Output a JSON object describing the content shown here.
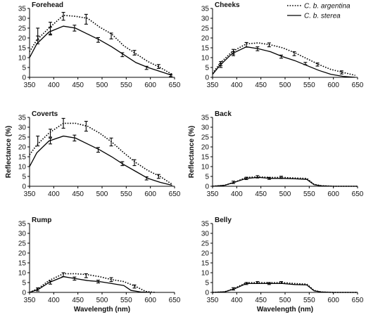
{
  "legend": {
    "argentina_label": "C. b. argentina",
    "sterea_label": "C. b. sterea"
  },
  "chart_data": [
    {
      "type": "line",
      "title": "Forehead",
      "xlabel": "",
      "ylabel": "",
      "xlim": [
        350,
        650
      ],
      "ylim": [
        0,
        35
      ],
      "xticks": [
        350,
        400,
        450,
        500,
        550,
        600,
        650
      ],
      "yticks": [
        0,
        5,
        10,
        15,
        20,
        25,
        30,
        35
      ],
      "series": [
        {
          "name": "C. b. argentina",
          "style": "dotted",
          "x": [
            350,
            365,
            390,
            420,
            445,
            470,
            495,
            520,
            545,
            570,
            595,
            620,
            645
          ],
          "y": [
            13,
            19,
            25,
            31.5,
            31,
            30,
            25.5,
            22,
            16,
            12,
            8,
            5,
            1.5
          ],
          "errors": [
            {
              "x": 367,
              "y": 22,
              "err": 3
            },
            {
              "x": 393,
              "y": 25,
              "err": 3
            },
            {
              "x": 420,
              "y": 31,
              "err": 2
            },
            {
              "x": 467,
              "y": 29.5,
              "err": 2.5
            },
            {
              "x": 519,
              "y": 21,
              "err": 1.5
            },
            {
              "x": 567,
              "y": 12.5,
              "err": 1.2
            },
            {
              "x": 617,
              "y": 5.5,
              "err": 1
            }
          ]
        },
        {
          "name": "C. b. sterea",
          "style": "solid",
          "x": [
            350,
            365,
            390,
            420,
            445,
            470,
            495,
            520,
            545,
            570,
            595,
            620,
            645
          ],
          "y": [
            10,
            17,
            23,
            26,
            25,
            22,
            19,
            15.5,
            11.5,
            7.5,
            5,
            3,
            1
          ],
          "errors": [
            {
              "x": 367,
              "y": 19,
              "err": 2
            },
            {
              "x": 393,
              "y": 23.5,
              "err": 2
            },
            {
              "x": 443,
              "y": 25,
              "err": 1.5
            },
            {
              "x": 492,
              "y": 19,
              "err": 1.2
            },
            {
              "x": 542,
              "y": 11.5,
              "err": 1
            },
            {
              "x": 592,
              "y": 4.8,
              "err": 0.8
            },
            {
              "x": 642,
              "y": 1,
              "err": 0.6
            }
          ]
        }
      ]
    },
    {
      "type": "line",
      "title": "Cheeks",
      "xlabel": "",
      "ylabel": "",
      "xlim": [
        350,
        650
      ],
      "ylim": [
        0,
        35
      ],
      "xticks": [
        350,
        400,
        450,
        500,
        550,
        600,
        650
      ],
      "yticks": [
        0,
        5,
        10,
        15,
        20,
        25,
        30,
        35
      ],
      "series": [
        {
          "name": "C. b. argentina",
          "style": "dotted",
          "x": [
            350,
            365,
            390,
            420,
            445,
            470,
            495,
            520,
            545,
            570,
            595,
            620,
            645
          ],
          "y": [
            2,
            7,
            13,
            17,
            17.5,
            16.5,
            15,
            12.5,
            9.5,
            6.5,
            4,
            2.5,
            1
          ],
          "errors": [
            {
              "x": 367,
              "y": 7,
              "err": 1
            },
            {
              "x": 393,
              "y": 13,
              "err": 1.2
            },
            {
              "x": 420,
              "y": 16.5,
              "err": 1.2
            },
            {
              "x": 467,
              "y": 16.5,
              "err": 1
            },
            {
              "x": 519,
              "y": 12,
              "err": 1
            },
            {
              "x": 567,
              "y": 6.5,
              "err": 0.8
            },
            {
              "x": 617,
              "y": 2.5,
              "err": 0.8
            }
          ]
        },
        {
          "name": "C. b. sterea",
          "style": "solid",
          "x": [
            350,
            365,
            390,
            420,
            445,
            470,
            495,
            520,
            545,
            570,
            595,
            620,
            645
          ],
          "y": [
            1.5,
            6,
            12,
            15.5,
            14.5,
            13,
            10.5,
            8.5,
            6,
            3.5,
            1.5,
            0.5,
            0
          ],
          "errors": [
            {
              "x": 367,
              "y": 6,
              "err": 1
            },
            {
              "x": 393,
              "y": 12,
              "err": 1
            },
            {
              "x": 443,
              "y": 14.5,
              "err": 1
            },
            {
              "x": 492,
              "y": 10.5,
              "err": 0.8
            },
            {
              "x": 542,
              "y": 7,
              "err": 0.6
            }
          ]
        }
      ]
    },
    {
      "type": "line",
      "title": "Coverts",
      "xlabel": "",
      "ylabel": "Reflectance (%)",
      "xlim": [
        350,
        650
      ],
      "ylim": [
        0,
        35
      ],
      "xticks": [
        350,
        400,
        450,
        500,
        550,
        600,
        650
      ],
      "yticks": [
        0,
        5,
        10,
        15,
        20,
        25,
        30,
        35
      ],
      "series": [
        {
          "name": "C. b. argentina",
          "style": "dotted",
          "x": [
            350,
            365,
            390,
            420,
            445,
            470,
            495,
            520,
            545,
            570,
            595,
            620,
            645
          ],
          "y": [
            16,
            21,
            27,
            32,
            32,
            30.5,
            27,
            22.5,
            17,
            12,
            8,
            5,
            1
          ],
          "errors": [
            {
              "x": 367,
              "y": 23,
              "err": 2.5
            },
            {
              "x": 393,
              "y": 27,
              "err": 2
            },
            {
              "x": 420,
              "y": 32,
              "err": 2.5
            },
            {
              "x": 467,
              "y": 30.5,
              "err": 2.5
            },
            {
              "x": 519,
              "y": 22.5,
              "err": 2
            },
            {
              "x": 567,
              "y": 12,
              "err": 1.5
            },
            {
              "x": 617,
              "y": 5,
              "err": 1
            }
          ]
        },
        {
          "name": "C. b. sterea",
          "style": "solid",
          "x": [
            350,
            365,
            390,
            420,
            445,
            470,
            495,
            520,
            545,
            570,
            595,
            620,
            645
          ],
          "y": [
            10,
            17,
            23,
            25.5,
            24.5,
            21.5,
            18.5,
            15,
            11,
            7.5,
            4,
            2,
            0.5
          ],
          "errors": [
            {
              "x": 393,
              "y": 23,
              "err": 1.5
            },
            {
              "x": 443,
              "y": 24.5,
              "err": 1.5
            },
            {
              "x": 492,
              "y": 18.5,
              "err": 1.2
            },
            {
              "x": 542,
              "y": 11.5,
              "err": 1
            },
            {
              "x": 592,
              "y": 4,
              "err": 0.8
            }
          ]
        }
      ]
    },
    {
      "type": "line",
      "title": "Back",
      "xlabel": "",
      "ylabel": "Reflectance (%)",
      "xlim": [
        350,
        650
      ],
      "ylim": [
        0,
        35
      ],
      "xticks": [
        350,
        400,
        450,
        500,
        550,
        600,
        650
      ],
      "yticks": [
        0,
        5,
        10,
        15,
        20,
        25,
        30,
        35
      ],
      "series": [
        {
          "name": "C. b. argentina",
          "style": "dotted",
          "x": [
            350,
            375,
            395,
            420,
            445,
            470,
            495,
            520,
            545,
            560,
            575,
            600,
            625,
            650
          ],
          "y": [
            0,
            0.5,
            2,
            4.5,
            4.8,
            4.5,
            4.5,
            4.2,
            4,
            1,
            0.3,
            0,
            0,
            0
          ],
          "errors": [
            {
              "x": 443,
              "y": 4.8,
              "err": 0.6
            },
            {
              "x": 492,
              "y": 4.5,
              "err": 0.6
            }
          ]
        },
        {
          "name": "C. b. sterea",
          "style": "solid",
          "x": [
            350,
            375,
            395,
            420,
            445,
            470,
            495,
            520,
            545,
            560,
            575,
            600,
            625,
            650
          ],
          "y": [
            0,
            0.5,
            2,
            4,
            4.5,
            4,
            4,
            3.8,
            3.5,
            0.8,
            0.2,
            0,
            0,
            0
          ],
          "errors": [
            {
              "x": 393,
              "y": 2,
              "err": 0.6
            },
            {
              "x": 420,
              "y": 4,
              "err": 0.6
            },
            {
              "x": 467,
              "y": 4,
              "err": 0.5
            }
          ]
        }
      ]
    },
    {
      "type": "line",
      "title": "Rump",
      "xlabel": "Wavelength (nm)",
      "ylabel": "",
      "xlim": [
        350,
        650
      ],
      "ylim": [
        0,
        35
      ],
      "xticks": [
        350,
        400,
        450,
        500,
        550,
        600,
        650
      ],
      "yticks": [
        0,
        5,
        10,
        15,
        20,
        25,
        30,
        35
      ],
      "series": [
        {
          "name": "C. b. argentina",
          "style": "dotted",
          "x": [
            350,
            368,
            390,
            420,
            445,
            470,
            495,
            520,
            545,
            570,
            590,
            610
          ],
          "y": [
            0,
            2,
            6,
            9.5,
            9.5,
            9,
            8,
            6.5,
            5.5,
            3,
            0.5,
            0
          ],
          "errors": [
            {
              "x": 420,
              "y": 9,
              "err": 1
            },
            {
              "x": 467,
              "y": 8.5,
              "err": 1
            },
            {
              "x": 519,
              "y": 6.5,
              "err": 1
            },
            {
              "x": 567,
              "y": 3,
              "err": 0.8
            }
          ]
        },
        {
          "name": "C. b. sterea",
          "style": "solid",
          "x": [
            350,
            368,
            390,
            420,
            445,
            470,
            495,
            520,
            545,
            560,
            580,
            600
          ],
          "y": [
            0,
            1.5,
            5,
            8,
            7,
            6,
            5.5,
            4.5,
            3.5,
            1,
            0.2,
            0
          ],
          "errors": [
            {
              "x": 367,
              "y": 1.5,
              "err": 0.8
            },
            {
              "x": 393,
              "y": 5,
              "err": 0.8
            },
            {
              "x": 443,
              "y": 7,
              "err": 0.8
            },
            {
              "x": 492,
              "y": 5.5,
              "err": 0.7
            }
          ]
        }
      ]
    },
    {
      "type": "line",
      "title": "Belly",
      "xlabel": "Wavelength (nm)",
      "ylabel": "",
      "xlim": [
        350,
        650
      ],
      "ylim": [
        0,
        35
      ],
      "xticks": [
        350,
        400,
        450,
        500,
        550,
        600,
        650
      ],
      "yticks": [
        0,
        5,
        10,
        15,
        20,
        25,
        30,
        35
      ],
      "series": [
        {
          "name": "C. b. argentina",
          "style": "dotted",
          "x": [
            350,
            375,
            395,
            420,
            445,
            470,
            495,
            520,
            545,
            560,
            575,
            600,
            625,
            650
          ],
          "y": [
            0,
            0.3,
            2,
            5,
            5,
            5,
            5,
            4.5,
            4.2,
            1,
            0.2,
            0,
            0,
            0
          ],
          "errors": [
            {
              "x": 443,
              "y": 5,
              "err": 0.5
            },
            {
              "x": 492,
              "y": 5,
              "err": 0.5
            }
          ]
        },
        {
          "name": "C. b. sterea",
          "style": "solid",
          "x": [
            350,
            375,
            395,
            420,
            445,
            470,
            495,
            520,
            545,
            560,
            575,
            600,
            625,
            650
          ],
          "y": [
            0,
            0.3,
            1.8,
            4.5,
            4.5,
            4.5,
            4.5,
            4,
            3.8,
            0.8,
            0.2,
            0,
            0,
            0
          ],
          "errors": [
            {
              "x": 393,
              "y": 1.8,
              "err": 0.6
            },
            {
              "x": 420,
              "y": 4.5,
              "err": 0.5
            },
            {
              "x": 467,
              "y": 4.5,
              "err": 0.5
            }
          ]
        }
      ]
    }
  ]
}
